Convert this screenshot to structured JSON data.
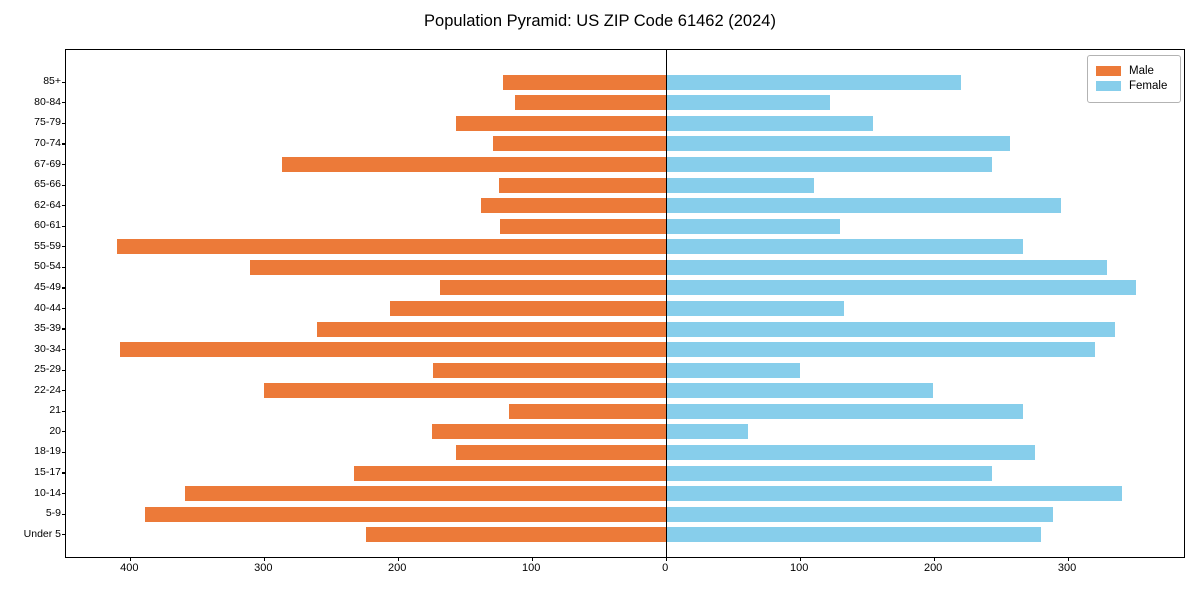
{
  "title": "Population Pyramid: US ZIP Code 61462 (2024)",
  "legend": {
    "position": "upper right",
    "items": [
      {
        "label": "Male",
        "color": "#ec7a39"
      },
      {
        "label": "Female",
        "color": "#87ceeb"
      }
    ]
  },
  "chart_data": {
    "type": "bar",
    "orientation": "horizontal",
    "title": "Population Pyramid: US ZIP Code 61462 (2024)",
    "categories": [
      "85+",
      "80-84",
      "75-79",
      "70-74",
      "67-69",
      "65-66",
      "62-64",
      "60-61",
      "55-59",
      "50-54",
      "45-49",
      "40-44",
      "35-39",
      "30-34",
      "25-29",
      "22-24",
      "21",
      "20",
      "18-19",
      "15-17",
      "10-14",
      "5-9",
      "Under 5"
    ],
    "series": [
      {
        "name": "Male",
        "side": "left",
        "color": "#ec7a39",
        "values": [
          122,
          113,
          157,
          129,
          287,
          125,
          138,
          124,
          410,
          311,
          169,
          206,
          261,
          408,
          174,
          300,
          117,
          175,
          157,
          233,
          359,
          389,
          224
        ]
      },
      {
        "name": "Female",
        "side": "right",
        "color": "#87ceeb",
        "values": [
          220,
          122,
          154,
          257,
          243,
          110,
          295,
          130,
          266,
          329,
          351,
          133,
          335,
          320,
          100,
          199,
          266,
          61,
          275,
          243,
          340,
          289,
          280
        ]
      }
    ],
    "xlim": [
      -448,
      388
    ],
    "x_ticks": [
      -400,
      -300,
      -200,
      -100,
      0,
      100,
      200,
      300
    ],
    "x_tick_labels": [
      "400",
      "300",
      "200",
      "100",
      "0",
      "100",
      "200",
      "300"
    ],
    "grid": false,
    "zero_line": true,
    "legend_position": "upper right",
    "axis_color": "#000000",
    "background_color": "#ffffff"
  }
}
